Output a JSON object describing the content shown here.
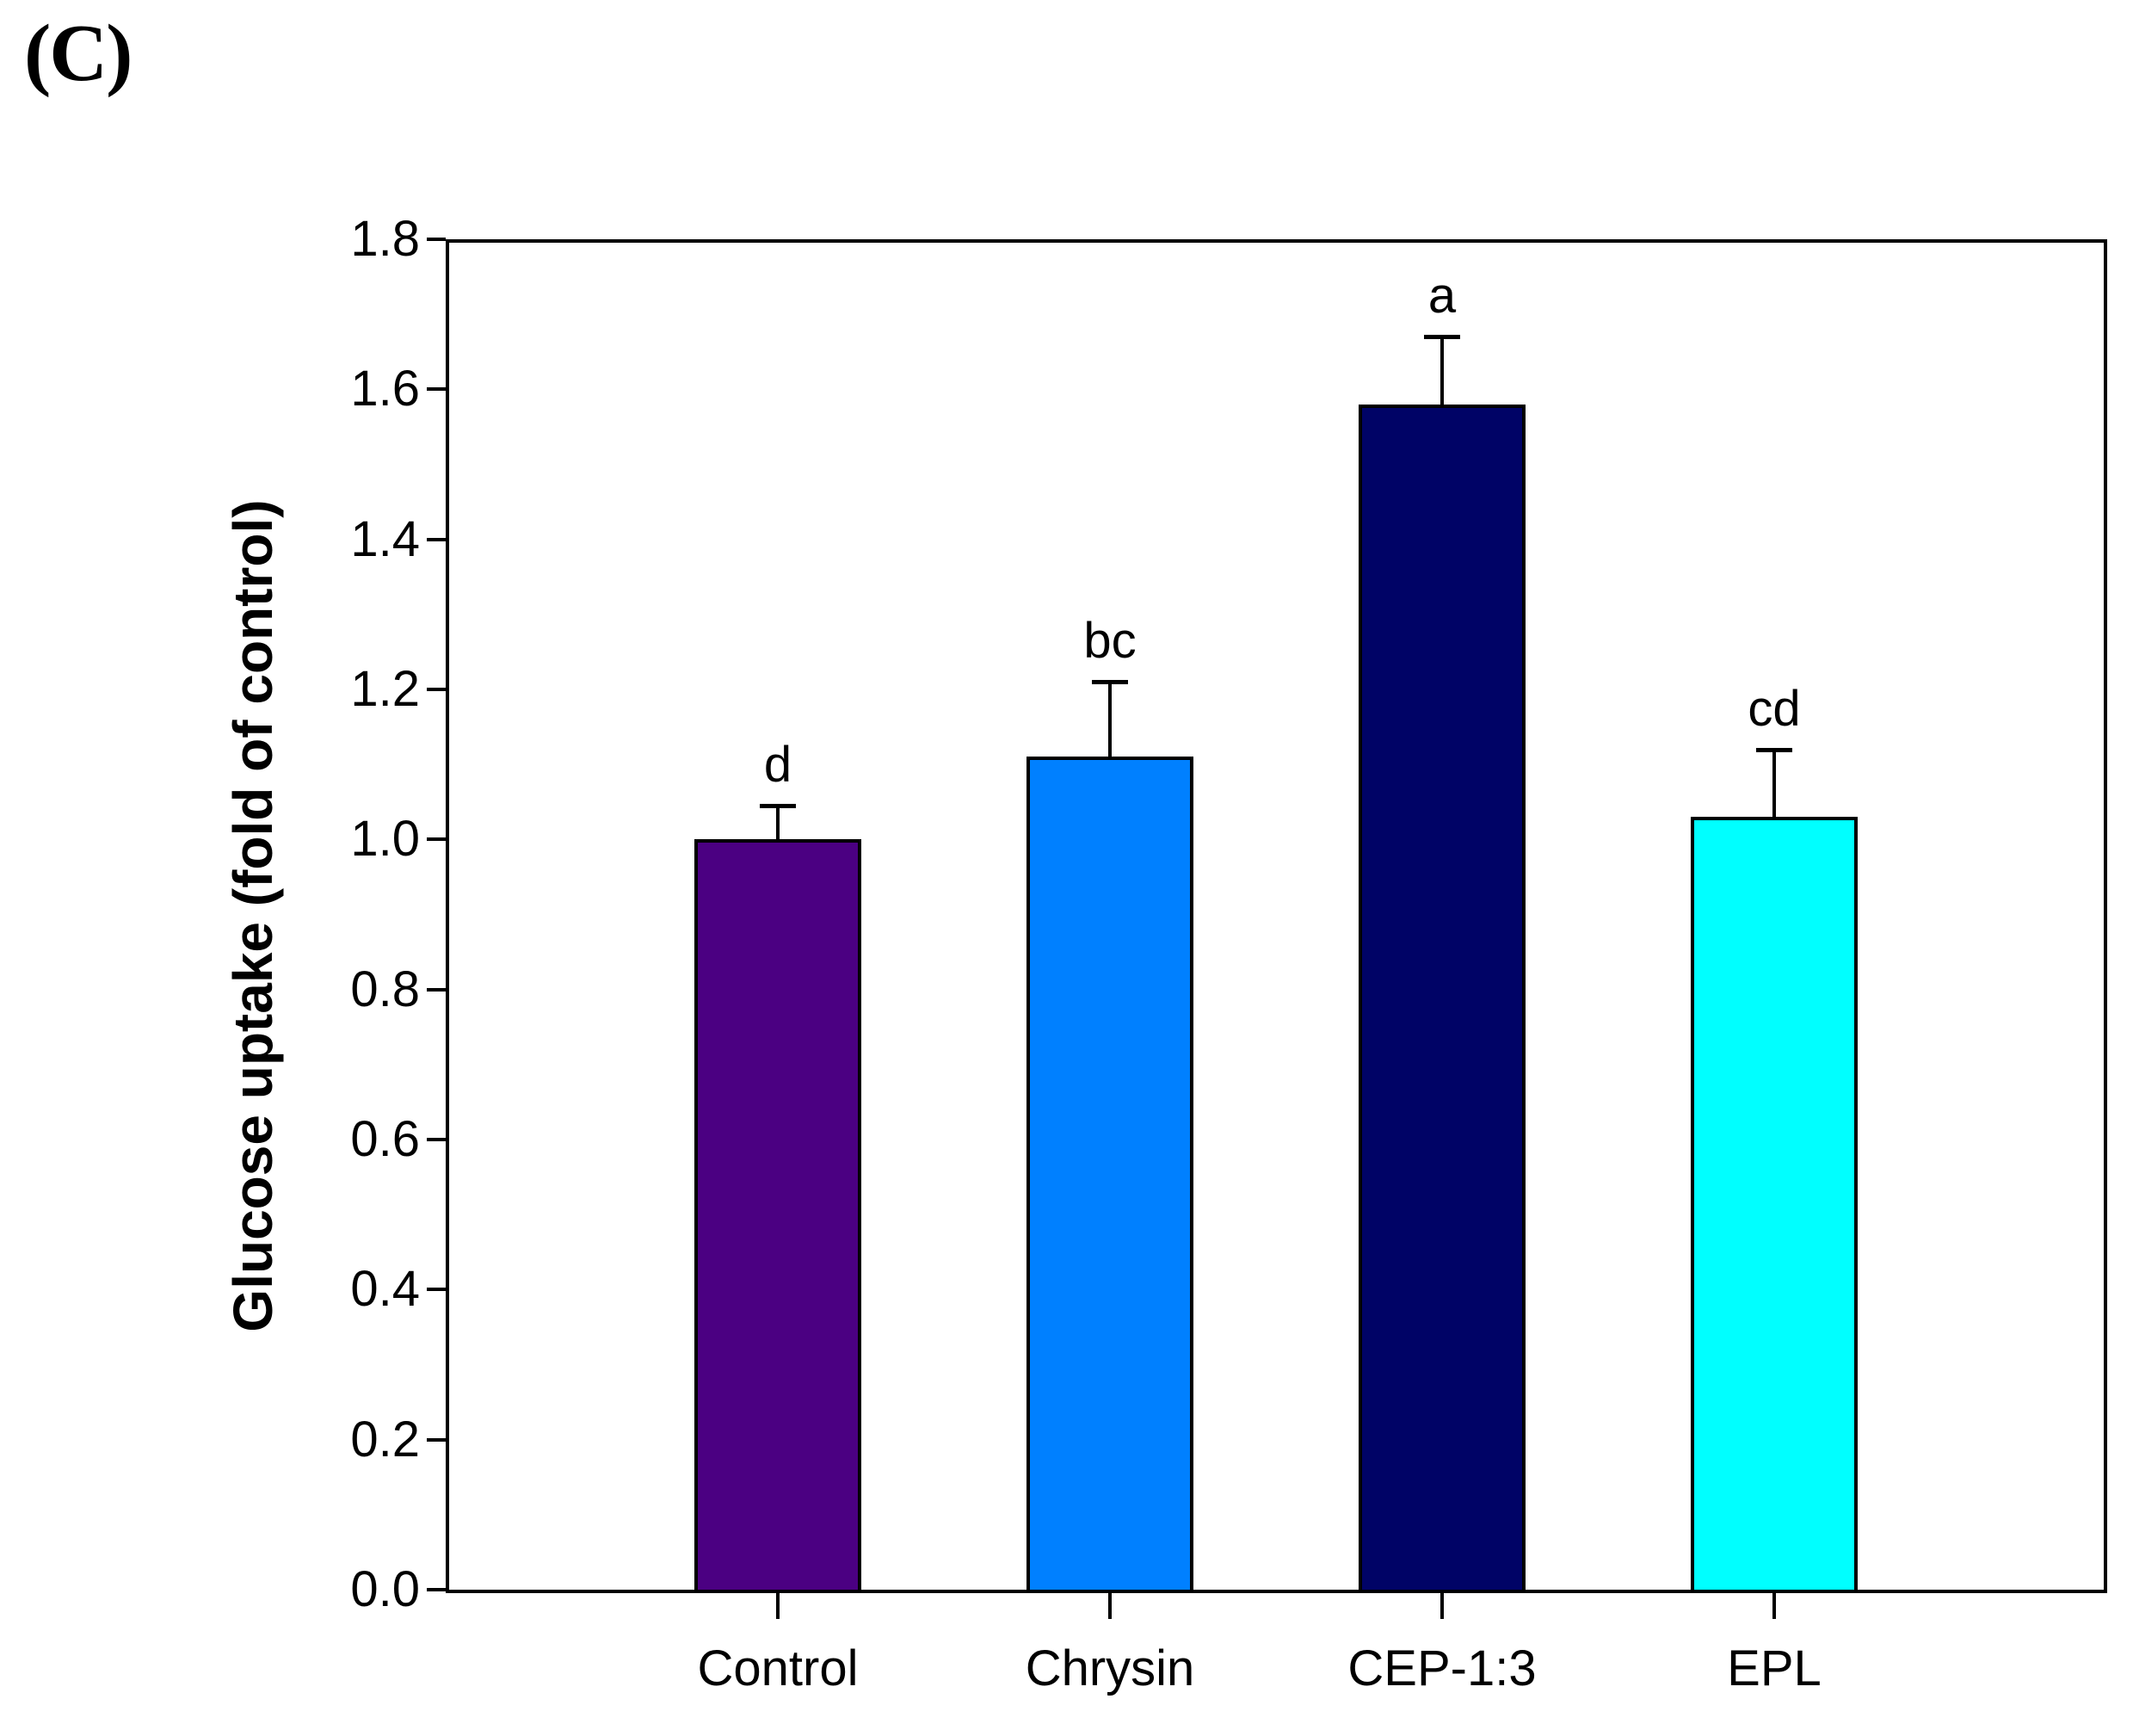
{
  "panel": {
    "label": "(C)"
  },
  "chart_data": {
    "type": "bar",
    "categories": [
      "Control",
      "Chrysin",
      "CEP-1:3",
      "EPL"
    ],
    "values": [
      1.0,
      1.11,
      1.58,
      1.03
    ],
    "errors": [
      0.045,
      0.1,
      0.09,
      0.09
    ],
    "error_direction": "upper",
    "significance_letters": [
      "d",
      "bc",
      "a",
      "cd"
    ],
    "bar_colors": [
      "#4B0082",
      "#0080FF",
      "#000366",
      "#00FFFF"
    ],
    "bar_border_color": "#000000",
    "title": "",
    "xlabel": "",
    "ylabel": "Glucose uptake (fold of control)",
    "ylim": [
      0,
      1.8
    ],
    "yticks": [
      "0.0",
      "0.2",
      "0.4",
      "0.6",
      "0.8",
      "1.0",
      "1.2",
      "1.4",
      "1.6",
      "1.8"
    ],
    "grid": false,
    "legend": false,
    "plot_frame": "full-box"
  }
}
